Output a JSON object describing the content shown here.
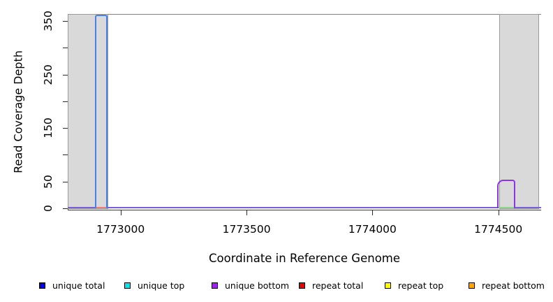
{
  "chart_data": {
    "type": "line",
    "title": "",
    "xlabel": "Coordinate in Reference Genome",
    "ylabel": "Read Coverage Depth",
    "xlim": [
      1772790,
      1774670
    ],
    "ylim": [
      0,
      363
    ],
    "x_ticks": [
      1773000,
      1773500,
      1774000,
      1774500
    ],
    "y_ticks": [
      0,
      50,
      100,
      150,
      200,
      250,
      300,
      350
    ],
    "y_labeled_ticks": [
      0,
      50,
      150,
      250,
      350
    ],
    "grid": false,
    "legend_position": "bottom",
    "shade_color": "#d9d9d9",
    "shaded_regions": [
      {
        "start": 1772790,
        "end": 1772950
      },
      {
        "start": 1774503,
        "end": 1774661
      }
    ],
    "series": [
      {
        "name": "unique total",
        "color": "#4a80ec",
        "points": [
          [
            1772790,
            0
          ],
          [
            1772900,
            0
          ],
          [
            1772900,
            360
          ],
          [
            1772944,
            360
          ],
          [
            1772944,
            0
          ],
          [
            1774670,
            0
          ]
        ]
      },
      {
        "name": "unique top",
        "color": "#00e5ee",
        "points": [
          [
            1772790,
            0
          ],
          [
            1774670,
            0
          ]
        ]
      },
      {
        "name": "unique bottom",
        "color": "#8b36e2",
        "points": [
          [
            1772790,
            0
          ],
          [
            1774497,
            0
          ],
          [
            1774497,
            52
          ],
          [
            1774564,
            52
          ],
          [
            1774564,
            0
          ],
          [
            1774670,
            0
          ]
        ]
      },
      {
        "name": "repeat total",
        "color": "#e80000",
        "points": [
          [
            1772790,
            0
          ],
          [
            1774670,
            0
          ]
        ]
      },
      {
        "name": "repeat top",
        "color": "#ffff00",
        "points": [
          [
            1772790,
            0
          ],
          [
            1774670,
            0
          ]
        ]
      },
      {
        "name": "repeat bottom",
        "color": "#ffa500",
        "points": [
          [
            1772790,
            0
          ],
          [
            1774670,
            0
          ]
        ]
      }
    ],
    "peaks": [
      {
        "key": "unique-total",
        "series": "unique total",
        "color": "#4a80ec",
        "start": 1772900,
        "end": 1772944,
        "value": 360
      },
      {
        "key": "unique-bottom",
        "series": "unique bottom",
        "color": "#8b36e2",
        "start": 1774497,
        "end": 1774564,
        "value": 52
      }
    ],
    "baseline": {
      "value": 0,
      "color": "#7a5dd8",
      "overlay_segments": [
        {
          "color": "#ef7d76",
          "start": 1772902,
          "end": 1772944
        },
        {
          "color": "#8fd58c",
          "start": 1774500,
          "end": 1774564
        }
      ]
    }
  },
  "legend": {
    "items": [
      {
        "label": "unique total",
        "color": "#0000ee"
      },
      {
        "label": "unique top",
        "color": "#00e5ee"
      },
      {
        "label": "unique bottom",
        "color": "#a020f0"
      },
      {
        "label": "repeat total",
        "color": "#e80000"
      },
      {
        "label": "repeat top",
        "color": "#ffff00"
      },
      {
        "label": "repeat bottom",
        "color": "#ffa500"
      }
    ]
  }
}
